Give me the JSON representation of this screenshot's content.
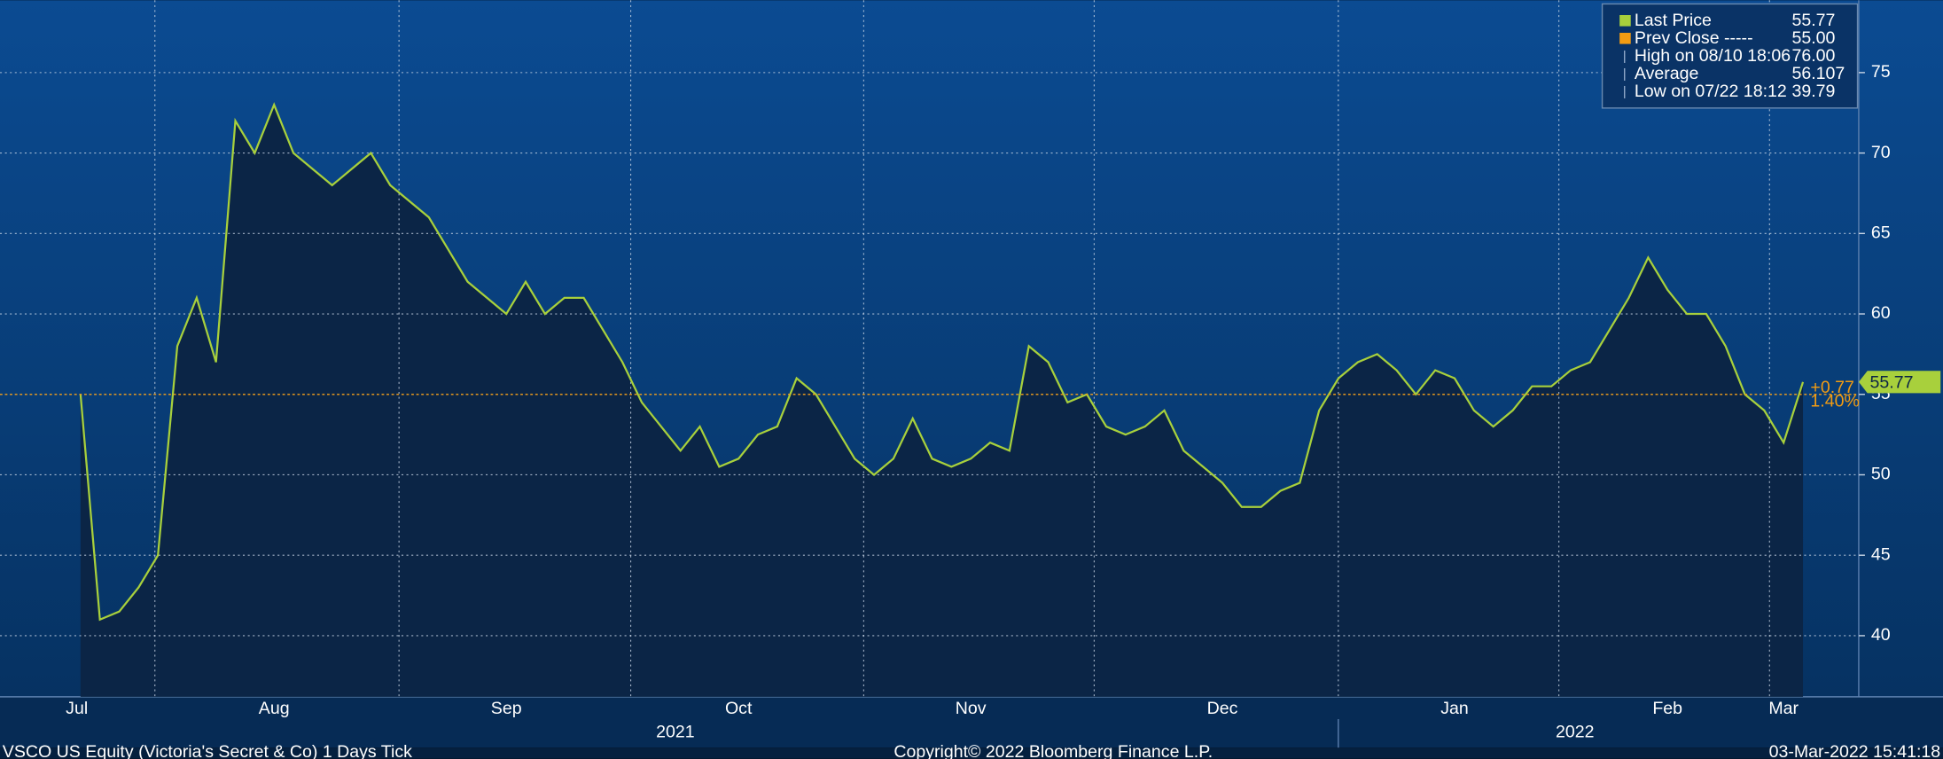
{
  "chart_data": {
    "type": "line",
    "categories": [
      "Jul",
      null,
      null,
      null,
      null,
      null,
      null,
      null,
      null,
      null,
      "Aug",
      null,
      null,
      null,
      null,
      null,
      null,
      null,
      null,
      null,
      null,
      null,
      "Sep",
      null,
      null,
      null,
      null,
      null,
      null,
      null,
      null,
      null,
      null,
      null,
      "Oct",
      null,
      null,
      null,
      null,
      null,
      null,
      null,
      null,
      null,
      null,
      null,
      "Nov",
      null,
      null,
      null,
      null,
      null,
      null,
      null,
      null,
      null,
      null,
      null,
      null,
      "Dec",
      null,
      null,
      null,
      null,
      null,
      null,
      null,
      null,
      null,
      null,
      null,
      "Jan",
      null,
      null,
      null,
      null,
      null,
      null,
      null,
      null,
      null,
      null,
      "Feb",
      null,
      null,
      null,
      null,
      null,
      "Mar",
      null
    ],
    "year_labels": [
      "2021",
      "2022"
    ],
    "series": [
      {
        "name": "Last Price",
        "color": "#a8d03c",
        "legend_value": "55.77",
        "values": [
          55,
          41,
          41.5,
          43,
          45,
          58,
          61,
          57,
          72,
          70,
          73,
          70,
          69,
          68,
          69,
          70,
          68,
          67,
          66,
          64,
          62,
          61,
          60,
          62,
          60,
          61,
          61,
          59,
          57,
          54.5,
          53,
          51.5,
          53,
          50.5,
          51,
          52.5,
          53,
          56,
          55,
          53,
          51,
          50,
          51,
          53.5,
          51,
          50.5,
          51,
          52,
          51.5,
          58,
          57,
          54.5,
          55,
          53,
          52.5,
          53,
          54,
          51.5,
          50.5,
          49.5,
          48,
          48,
          49,
          49.5,
          54,
          56,
          57,
          57.5,
          56.5,
          55,
          56.5,
          56,
          54,
          53,
          54,
          55.5,
          55.5,
          56.5,
          57,
          59,
          61,
          63.5,
          61.5,
          60,
          60,
          58,
          55,
          54,
          52,
          55.77
        ]
      }
    ],
    "reference_lines": [
      {
        "name": "Prev Close -----",
        "value": 55,
        "value_label": "55.00",
        "color": "#f39c12"
      }
    ],
    "stats": [
      {
        "name": "High on 08/10 18:06",
        "value": "76.00"
      },
      {
        "name": "Average",
        "value": "56.107"
      },
      {
        "name": "Low on 07/22 18:12",
        "value": "39.79"
      }
    ],
    "change_labels": [
      "+0.77",
      "1.40%"
    ],
    "ylim": [
      36.2,
      79.5
    ],
    "yticks": [
      40,
      45,
      50,
      55,
      60,
      65,
      70,
      75
    ],
    "grid": true,
    "footer": {
      "left": "VSCO US Equity (Victoria's Secret & Co) 1 Days  Tick",
      "center": "Copyright© 2022 Bloomberg Finance L.P.",
      "right": "03-Mar-2022 15:41:18"
    }
  }
}
